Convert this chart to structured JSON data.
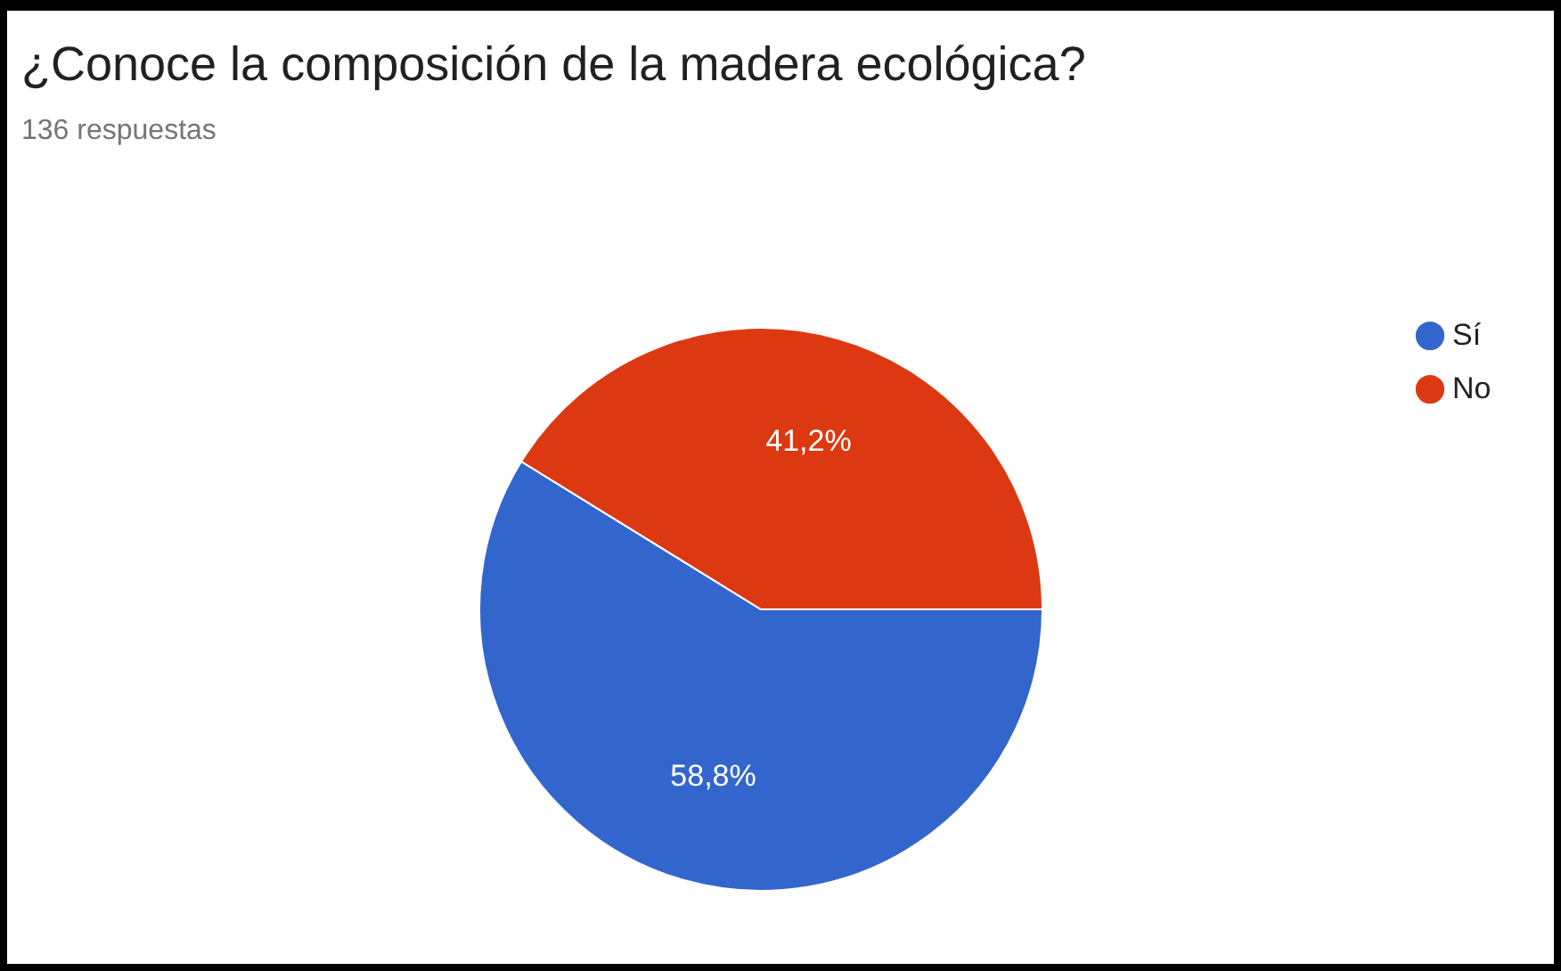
{
  "chart_data": {
    "type": "pie",
    "title": "¿Conoce la composición de la madera ecológica?",
    "subtitle": "136 respuestas",
    "categories": [
      "Sí",
      "No"
    ],
    "values": [
      58.8,
      41.2
    ],
    "colors": [
      "#3366cc",
      "#dc3912"
    ],
    "value_labels": [
      "58,8%",
      "41,2%"
    ],
    "legend": "right"
  }
}
